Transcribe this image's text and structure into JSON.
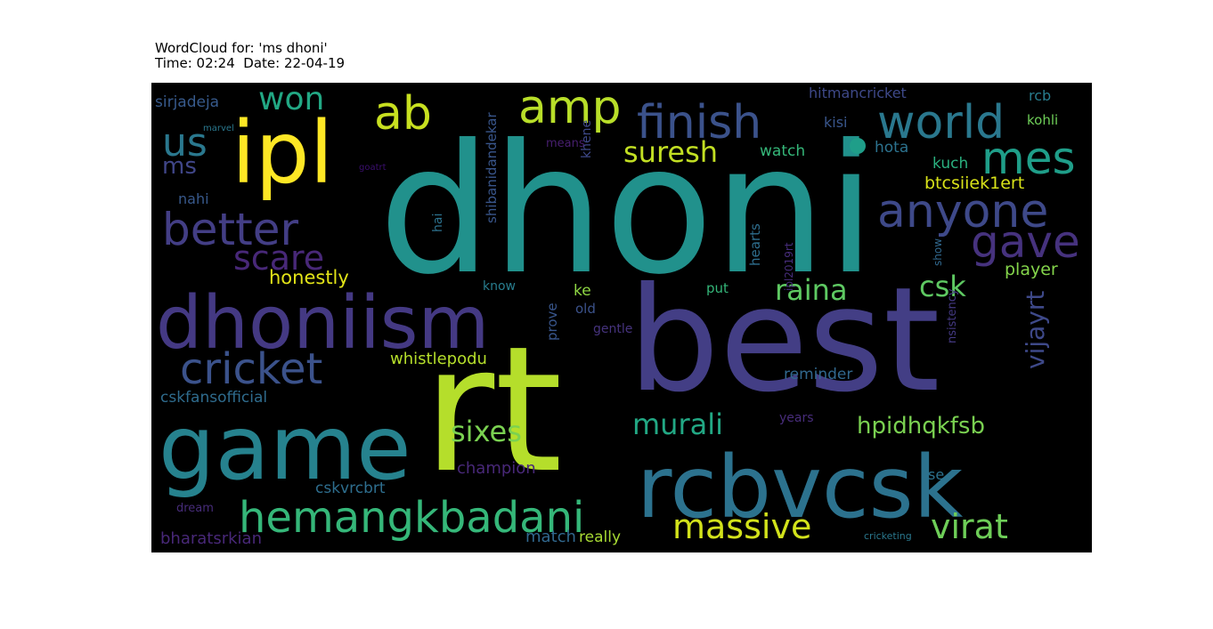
{
  "title": {
    "line1": "WordCloud for: 'ms dhoni'",
    "line2": "Time: 02:24  Date: 22-04-19"
  },
  "words": [
    {
      "t": "dhoni",
      "c": "#21918c"
    },
    {
      "t": "rt",
      "c": "#b5de2b"
    },
    {
      "t": "best",
      "c": "#433e85"
    },
    {
      "t": "game",
      "c": "#26828e"
    },
    {
      "t": "rcbvcsk",
      "c": "#2c728e"
    },
    {
      "t": "dhoniism",
      "c": "#443983"
    },
    {
      "t": "ipl",
      "c": "#fde725"
    },
    {
      "t": "hemangkbadani",
      "c": "#35b779"
    },
    {
      "t": "finish",
      "c": "#3b528b"
    },
    {
      "t": "world",
      "c": "#2a788e"
    },
    {
      "t": "amp",
      "c": "#b8de29"
    },
    {
      "t": "anyone",
      "c": "#3e4989"
    },
    {
      "t": "better",
      "c": "#433e85"
    },
    {
      "t": "ab",
      "c": "#c8e020"
    },
    {
      "t": "cricket",
      "c": "#3b528b"
    },
    {
      "t": "mes",
      "c": "#1f9e89"
    },
    {
      "t": "gave",
      "c": "#46327e"
    },
    {
      "t": "us",
      "c": "#2a788e"
    },
    {
      "t": "won",
      "c": "#22a884"
    },
    {
      "t": "massive",
      "c": "#d2e21b"
    },
    {
      "t": "virat",
      "c": "#6ece58"
    },
    {
      "t": "scare",
      "c": "#482878"
    },
    {
      "t": "murali",
      "c": "#22a884"
    },
    {
      "t": "sixes",
      "c": "#7ad151"
    },
    {
      "t": "raina",
      "c": "#5ec962"
    },
    {
      "t": "suresh",
      "c": "#c2df23"
    },
    {
      "t": "csk",
      "c": "#5ec962"
    },
    {
      "t": "hpidhqkfsb",
      "c": "#7ad151"
    },
    {
      "t": "vijayrt",
      "c": "#3e4989"
    },
    {
      "t": "ms",
      "c": "#404688"
    },
    {
      "t": "honestly",
      "c": "#e2e418"
    },
    {
      "t": "whistlepodu",
      "c": "#b5de2b"
    },
    {
      "t": "player",
      "c": "#84d44b"
    },
    {
      "t": "btcsiiek1ert",
      "c": "#d8e219"
    },
    {
      "t": "cskvrcbrt",
      "c": "#2e6e8e"
    },
    {
      "t": "champion",
      "c": "#482878"
    },
    {
      "t": "bharatsrkian",
      "c": "#482878"
    },
    {
      "t": "match",
      "c": "#31688e"
    },
    {
      "t": "really",
      "c": "#a8db34"
    },
    {
      "t": "cskfansofficial",
      "c": "#2f6c8e"
    },
    {
      "t": "reminder",
      "c": "#31688e"
    },
    {
      "t": "hitmancricket",
      "c": "#3e4989"
    },
    {
      "t": "sirjadeja",
      "c": "#375a8c"
    },
    {
      "t": "watch",
      "c": "#35b779"
    },
    {
      "t": "kuch",
      "c": "#2ab07f"
    },
    {
      "t": "hota",
      "c": "#2c728e"
    },
    {
      "t": "kisi",
      "c": "#39568c"
    },
    {
      "t": "rcb",
      "c": "#287d8e"
    },
    {
      "t": "kohli",
      "c": "#6ece58"
    },
    {
      "t": "nahi",
      "c": "#38598c"
    },
    {
      "t": "means",
      "c": "#481f70"
    },
    {
      "t": "marvel",
      "c": "#2a788e"
    },
    {
      "t": "goatrt",
      "c": "#3b0f70"
    },
    {
      "t": "khene",
      "c": "#3e4989"
    },
    {
      "t": "shibanidandekar",
      "c": "#39568c"
    },
    {
      "t": "hai",
      "c": "#2c728e"
    },
    {
      "t": "hearts",
      "c": "#2e6e8e"
    },
    {
      "t": "ipl2019rt",
      "c": "#472d7b"
    },
    {
      "t": "show",
      "c": "#31688e"
    },
    {
      "t": "nsistency",
      "c": "#443983"
    },
    {
      "t": "know",
      "c": "#287d8e"
    },
    {
      "t": "ke",
      "c": "#8fd744"
    },
    {
      "t": "old",
      "c": "#3b528b"
    },
    {
      "t": "prove",
      "c": "#39568c"
    },
    {
      "t": "gentle",
      "c": "#46337e"
    },
    {
      "t": "put",
      "c": "#34b679"
    },
    {
      "t": "years",
      "c": "#472c7a"
    },
    {
      "t": "se",
      "c": "#2c728e"
    },
    {
      "t": "dream",
      "c": "#472c7a"
    },
    {
      "t": "cricketing",
      "c": "#2a788e"
    }
  ]
}
